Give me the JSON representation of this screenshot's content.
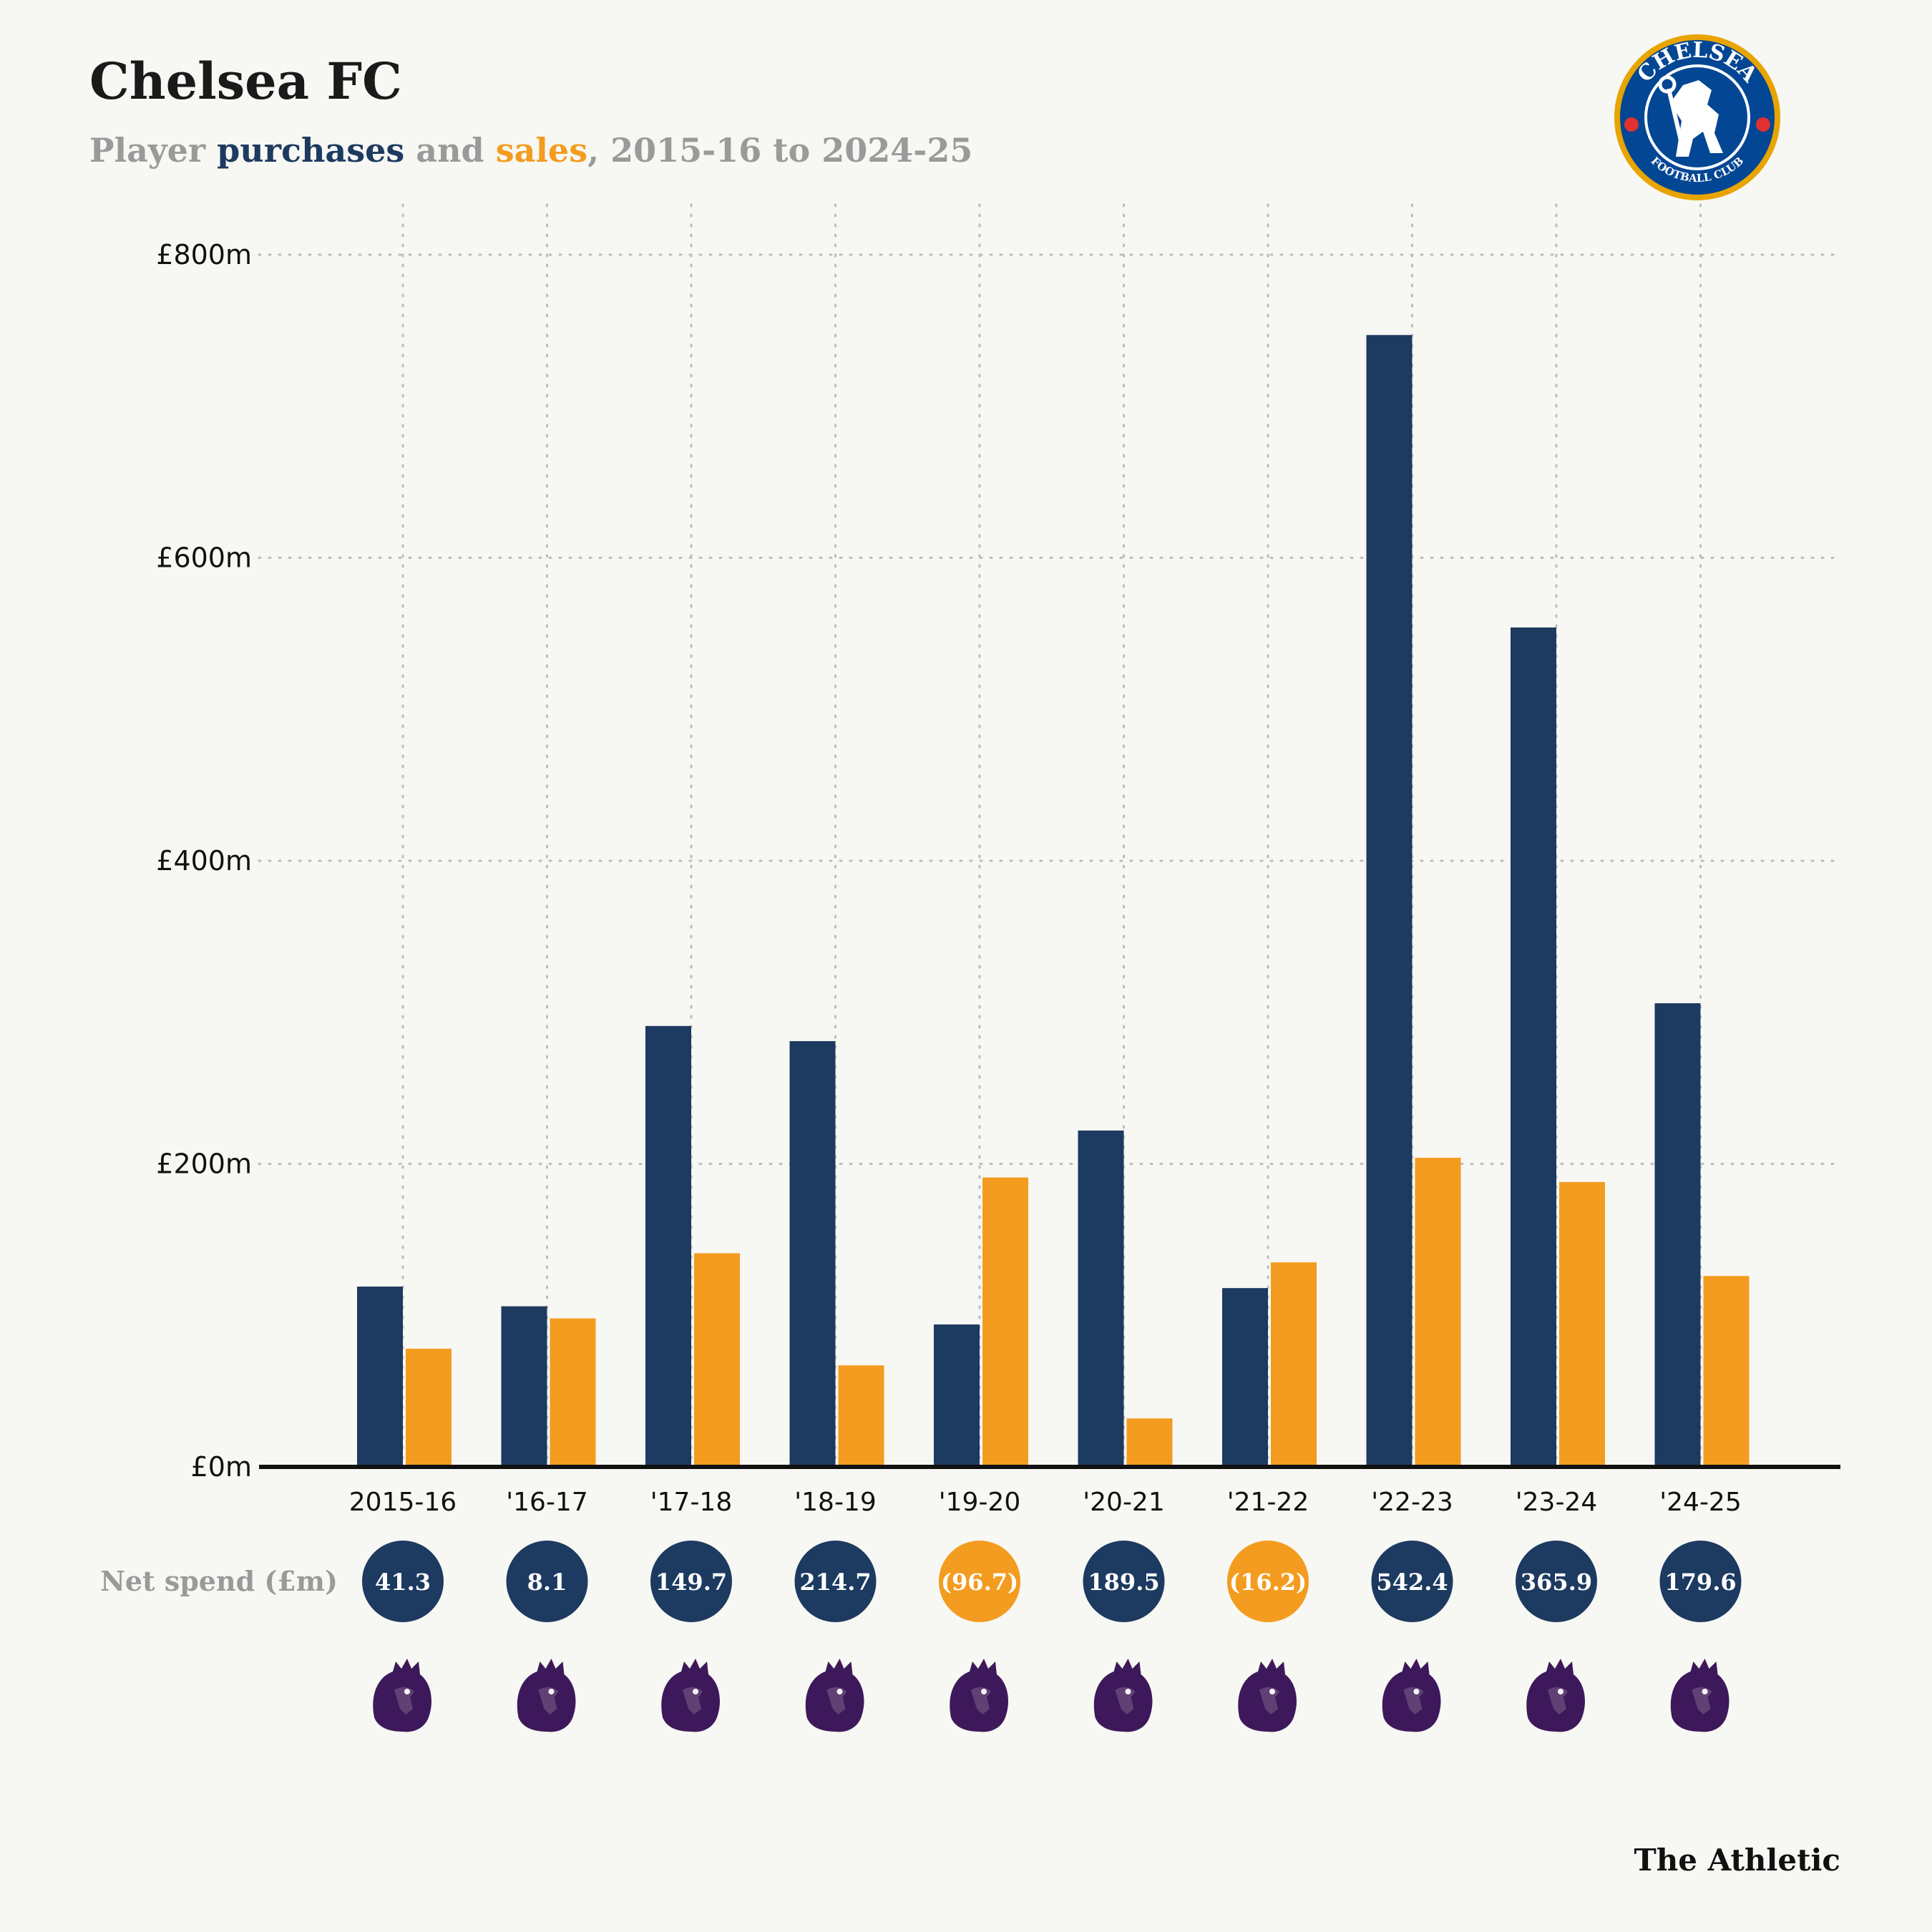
{
  "header": {
    "title": "Chelsea FC",
    "subtitle_parts": [
      {
        "text": "Player ",
        "color": "#9a9a9a"
      },
      {
        "text": "purchases",
        "color": "#1d3a60"
      },
      {
        "text": " and ",
        "color": "#9a9a9a"
      },
      {
        "text": "sales",
        "color": "#f39c1f"
      },
      {
        "text": ", 2015-16 to 2024-25",
        "color": "#9a9a9a"
      }
    ]
  },
  "crest": {
    "top_text": "CHELSEA",
    "bottom_text": "FOOTBALL CLUB"
  },
  "net_spend": {
    "label": "Net spend (£m)",
    "values": [
      "41.3",
      "8.1",
      "149.7",
      "214.7",
      "(96.7)",
      "189.5",
      "(16.2)",
      "542.4",
      "365.9",
      "179.6"
    ],
    "kinds": [
      "positive",
      "positive",
      "positive",
      "positive",
      "negative",
      "positive",
      "negative",
      "positive",
      "positive",
      "positive"
    ]
  },
  "footer": {
    "brand": "The Athletic"
  },
  "colors": {
    "purchases": "#1d3a60",
    "sales": "#f39c1f",
    "background": "#f7f7f3",
    "league_icon": "#3d195b"
  },
  "icons": {
    "league": "premier-league-lion-icon"
  },
  "chart_data": {
    "type": "bar",
    "categories": [
      "2015-16",
      "'16-17",
      "'17-18",
      "'18-19",
      "'19-20",
      "'20-21",
      "'21-22",
      "'22-23",
      "'23-24",
      "'24-25"
    ],
    "series": [
      {
        "name": "purchases",
        "values": [
          119,
          106,
          291,
          281,
          94,
          222,
          118,
          747,
          554,
          306
        ]
      },
      {
        "name": "sales",
        "values": [
          78,
          98,
          141,
          67,
          191,
          32,
          135,
          204,
          188,
          126
        ]
      }
    ],
    "yticks": [
      "£0m",
      "£200m",
      "£400m",
      "£600m",
      "£800m"
    ],
    "ytick_values": [
      0,
      200,
      400,
      600,
      800
    ],
    "ylim": [
      0,
      800
    ],
    "grid": true,
    "xlabel": "",
    "ylabel": ""
  }
}
